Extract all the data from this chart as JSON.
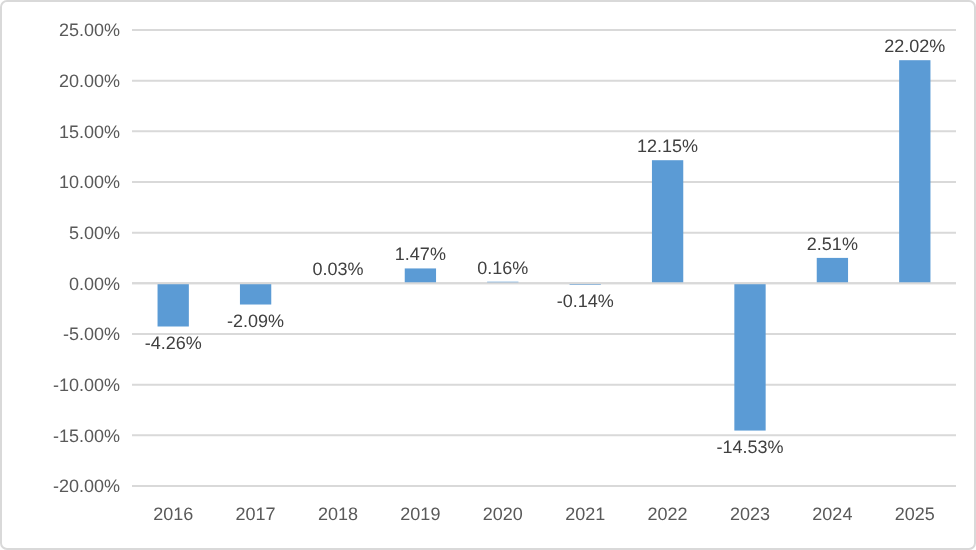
{
  "chart_data": {
    "type": "bar",
    "categories": [
      "2016",
      "2017",
      "2018",
      "2019",
      "2020",
      "2021",
      "2022",
      "2023",
      "2024",
      "2025"
    ],
    "values": [
      -4.26,
      -2.09,
      0.03,
      1.47,
      0.16,
      -0.14,
      12.15,
      -14.53,
      2.51,
      22.02
    ],
    "value_labels": [
      "-4.26%",
      "-2.09%",
      "0.03%",
      "1.47%",
      "0.16%",
      "-0.14%",
      "12.15%",
      "-14.53%",
      "2.51%",
      "22.02%"
    ],
    "color": "#5b9bd5",
    "ylim": [
      -20,
      25
    ],
    "yticks": [
      {
        "value": -20,
        "label": "-20.00%"
      },
      {
        "value": -15,
        "label": "-15.00%"
      },
      {
        "value": -10,
        "label": "-10.00%"
      },
      {
        "value": -5,
        "label": "-5.00%"
      },
      {
        "value": 0,
        "label": "0.00%"
      },
      {
        "value": 5,
        "label": "5.00%"
      },
      {
        "value": 10,
        "label": "10.00%"
      },
      {
        "value": 15,
        "label": "15.00%"
      },
      {
        "value": 20,
        "label": "20.00%"
      },
      {
        "value": 25,
        "label": "25.00%"
      }
    ],
    "grid": "y"
  }
}
